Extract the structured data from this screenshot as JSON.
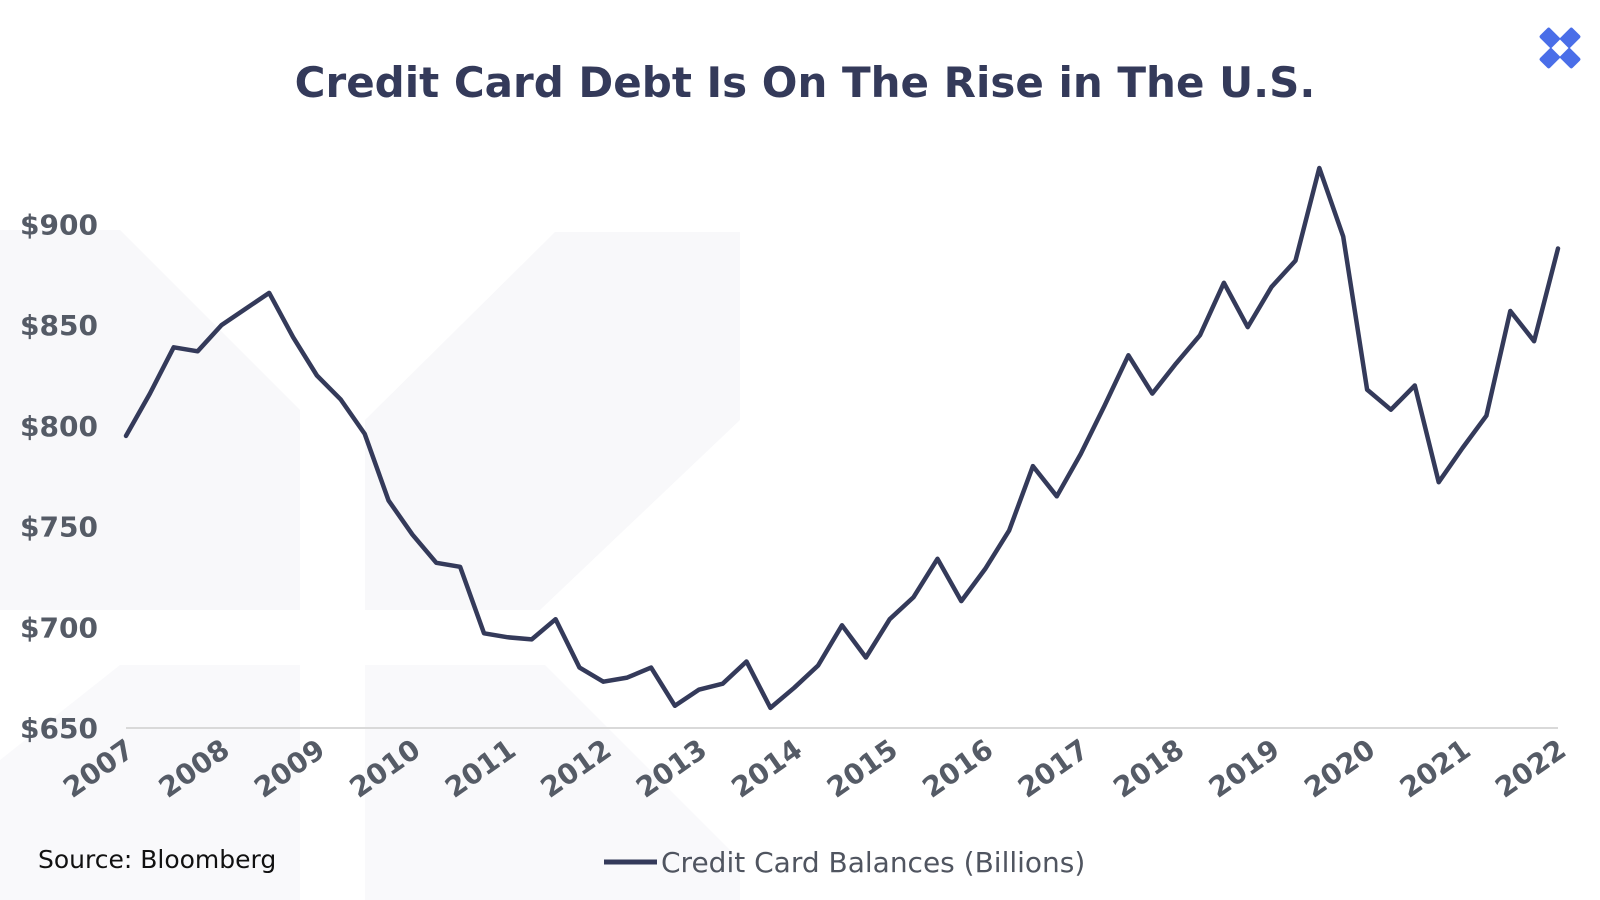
{
  "colors": {
    "line": "#343a5a",
    "axis": "#d9d9d9",
    "tick_text": "#555b66",
    "logo": "#4a6ee8",
    "watermark": "#f7f7f9"
  },
  "logo": {
    "icon": "x-logo-icon"
  },
  "source": "Source: Bloomberg",
  "chart_data": {
    "type": "line",
    "title": "Credit Card Debt Is On The Rise in The U.S.",
    "xlabel": "",
    "ylabel": "",
    "ylim": [
      650,
      925
    ],
    "xlim": [
      2007,
      2022
    ],
    "y_ticks": [
      650,
      700,
      750,
      800,
      850,
      900
    ],
    "y_tick_labels": [
      "$650",
      "$700",
      "$750",
      "$800",
      "$850",
      "$900"
    ],
    "x_ticks": [
      2007,
      2008,
      2009,
      2010,
      2011,
      2012,
      2013,
      2014,
      2015,
      2016,
      2017,
      2018,
      2019,
      2020,
      2021,
      2022
    ],
    "x_tick_labels": [
      "2007",
      "2008",
      "2009",
      "2010",
      "2011",
      "2012",
      "2013",
      "2014",
      "2015",
      "2016",
      "2017",
      "2018",
      "2019",
      "2020",
      "2021",
      "2022"
    ],
    "grid": false,
    "legend": {
      "position": "bottom-center"
    },
    "series": [
      {
        "name": "Credit Card Balances (Billions)",
        "x": [
          2007.0,
          2007.25,
          2007.5,
          2007.75,
          2008.0,
          2008.25,
          2008.5,
          2008.75,
          2009.0,
          2009.25,
          2009.5,
          2009.75,
          2010.0,
          2010.25,
          2010.5,
          2010.75,
          2011.0,
          2011.25,
          2011.5,
          2011.75,
          2012.0,
          2012.25,
          2012.5,
          2012.75,
          2013.0,
          2013.25,
          2013.5,
          2013.75,
          2014.0,
          2014.25,
          2014.5,
          2014.75,
          2015.0,
          2015.25,
          2015.5,
          2015.75,
          2016.0,
          2016.25,
          2016.5,
          2016.75,
          2017.0,
          2017.25,
          2017.5,
          2017.75,
          2018.0,
          2018.25,
          2018.5,
          2018.75,
          2019.0,
          2019.25,
          2019.5,
          2019.75,
          2020.0,
          2020.25,
          2020.5,
          2020.75,
          2021.0,
          2021.25,
          2021.5,
          2021.75,
          2022.0
        ],
        "values": [
          795,
          816,
          839,
          837,
          850,
          858,
          866,
          844,
          825,
          813,
          796,
          763,
          746,
          732,
          730,
          697,
          695,
          694,
          704,
          680,
          673,
          675,
          680,
          661,
          669,
          672,
          683,
          660,
          670,
          681,
          701,
          685,
          704,
          715,
          734,
          713,
          729,
          748,
          780,
          765,
          786,
          810,
          835,
          816,
          831,
          845,
          871,
          849,
          869,
          882,
          928,
          894,
          818,
          808,
          820,
          772,
          789,
          805,
          857,
          842,
          888
        ]
      }
    ]
  }
}
